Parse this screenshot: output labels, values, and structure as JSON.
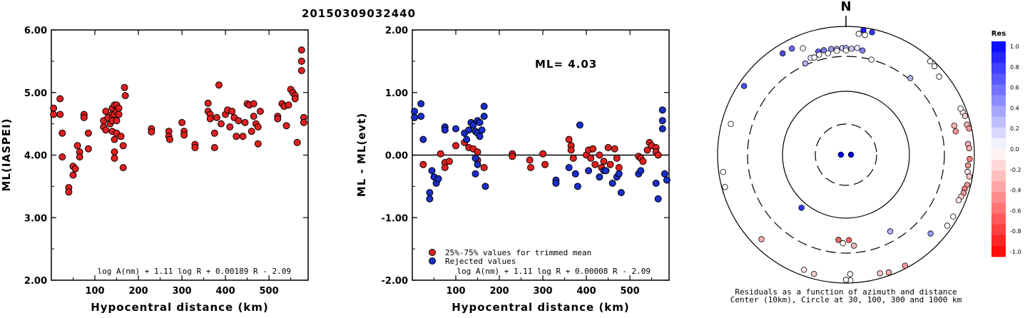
{
  "title": "20150309032440",
  "chart_data": [
    {
      "type": "scatter",
      "name": "ml-vs-distance",
      "xlabel": "Hypocentral distance (km)",
      "ylabel": "ML(IASPEI)",
      "xlim": [
        0,
        590
      ],
      "ylim": [
        2.0,
        6.0
      ],
      "xticks": [
        "100",
        "200",
        "300",
        "400",
        "500"
      ],
      "yticks": [
        "2.00",
        "3.00",
        "4.00",
        "5.00",
        "6.00"
      ],
      "formula": "log A(nm) + 1.11 log R + 0.00189 R - 2.09",
      "marker_color": "#e02020",
      "points": [
        [
          5,
          4.75
        ],
        [
          5,
          4.65
        ],
        [
          20,
          4.9
        ],
        [
          20,
          4.65
        ],
        [
          25,
          4.35
        ],
        [
          25,
          3.97
        ],
        [
          40,
          3.48
        ],
        [
          40,
          3.41
        ],
        [
          50,
          3.82
        ],
        [
          50,
          3.68
        ],
        [
          55,
          3.78
        ],
        [
          60,
          4.15
        ],
        [
          65,
          4.05
        ],
        [
          65,
          3.97
        ],
        [
          75,
          4.65
        ],
        [
          75,
          4.6
        ],
        [
          85,
          4.35
        ],
        [
          85,
          4.1
        ],
        [
          120,
          4.55
        ],
        [
          120,
          4.45
        ],
        [
          125,
          4.7
        ],
        [
          125,
          4.4
        ],
        [
          130,
          4.6
        ],
        [
          135,
          4.5
        ],
        [
          140,
          4.75
        ],
        [
          140,
          4.65
        ],
        [
          140,
          4.55
        ],
        [
          140,
          4.38
        ],
        [
          145,
          4.8
        ],
        [
          145,
          4.65
        ],
        [
          145,
          4.25
        ],
        [
          145,
          4.05
        ],
        [
          145,
          3.95
        ],
        [
          150,
          4.8
        ],
        [
          150,
          4.7
        ],
        [
          150,
          4.55
        ],
        [
          150,
          4.35
        ],
        [
          155,
          4.75
        ],
        [
          155,
          4.65
        ],
        [
          160,
          4.3
        ],
        [
          165,
          4.15
        ],
        [
          165,
          3.8
        ],
        [
          168,
          5.08
        ],
        [
          170,
          4.95
        ],
        [
          230,
          4.42
        ],
        [
          230,
          4.37
        ],
        [
          270,
          4.38
        ],
        [
          270,
          4.3
        ],
        [
          272,
          4.25
        ],
        [
          300,
          4.52
        ],
        [
          305,
          4.38
        ],
        [
          305,
          4.32
        ],
        [
          330,
          4.17
        ],
        [
          330,
          4.12
        ],
        [
          360,
          4.83
        ],
        [
          360,
          4.7
        ],
        [
          365,
          4.65
        ],
        [
          365,
          4.58
        ],
        [
          375,
          4.35
        ],
        [
          375,
          4.12
        ],
        [
          380,
          4.6
        ],
        [
          385,
          5.12
        ],
        [
          390,
          4.5
        ],
        [
          400,
          4.65
        ],
        [
          405,
          4.72
        ],
        [
          410,
          4.45
        ],
        [
          415,
          4.7
        ],
        [
          420,
          4.6
        ],
        [
          425,
          4.3
        ],
        [
          430,
          4.55
        ],
        [
          440,
          4.3
        ],
        [
          445,
          4.52
        ],
        [
          450,
          4.82
        ],
        [
          455,
          4.8
        ],
        [
          460,
          4.38
        ],
        [
          465,
          4.62
        ],
        [
          465,
          4.82
        ],
        [
          470,
          4.5
        ],
        [
          475,
          4.45
        ],
        [
          475,
          4.18
        ],
        [
          480,
          4.7
        ],
        [
          520,
          4.62
        ],
        [
          520,
          4.58
        ],
        [
          530,
          4.82
        ],
        [
          535,
          4.78
        ],
        [
          540,
          4.47
        ],
        [
          545,
          4.8
        ],
        [
          550,
          5.05
        ],
        [
          555,
          5.0
        ],
        [
          560,
          4.95
        ],
        [
          560,
          4.9
        ],
        [
          565,
          4.2
        ],
        [
          575,
          5.68
        ],
        [
          575,
          5.5
        ],
        [
          575,
          5.35
        ],
        [
          580,
          4.6
        ],
        [
          580,
          4.52
        ]
      ]
    },
    {
      "type": "scatter",
      "name": "residual-vs-distance",
      "xlabel": "Hypocentral distance (km)",
      "ylabel": "ML - ML(evt)",
      "xlim": [
        0,
        590
      ],
      "ylim": [
        -2.0,
        2.0
      ],
      "xticks": [
        "100",
        "200",
        "300",
        "400",
        "500"
      ],
      "yticks": [
        "-2.00",
        "-1.00",
        "0.00",
        "1.00",
        "2.00"
      ],
      "annotation": "ML= 4.03",
      "formula": "log A(nm) + 1.11 log R + 0.00008 R - 2.09",
      "legend": {
        "trimmed": "25%-75% values for trimmed mean",
        "rejected": "Rejected values"
      },
      "trimmed_color": "#e02020",
      "rejected_color": "#1a2ec8",
      "series": [
        {
          "role": "trimmed",
          "points": [
            [
              25,
              -0.15
            ],
            [
              65,
              0.02
            ],
            [
              75,
              -0.12
            ],
            [
              75,
              -0.2
            ],
            [
              85,
              -0.1
            ],
            [
              100,
              0.15
            ],
            [
              120,
              0.2
            ],
            [
              130,
              0.12
            ],
            [
              140,
              0.1
            ],
            [
              150,
              0.05
            ],
            [
              150,
              -0.08
            ],
            [
              165,
              -0.2
            ],
            [
              230,
              0.02
            ],
            [
              230,
              -0.02
            ],
            [
              270,
              -0.08
            ],
            [
              272,
              -0.2
            ],
            [
              300,
              0.02
            ],
            [
              305,
              -0.15
            ],
            [
              360,
              0.25
            ],
            [
              365,
              0.15
            ],
            [
              365,
              0.08
            ],
            [
              370,
              -0.05
            ],
            [
              400,
              0.0
            ],
            [
              405,
              0.08
            ],
            [
              410,
              -0.05
            ],
            [
              415,
              0.1
            ],
            [
              420,
              -0.15
            ],
            [
              430,
              0.0
            ],
            [
              435,
              -0.2
            ],
            [
              440,
              -0.1
            ],
            [
              450,
              0.12
            ],
            [
              455,
              -0.15
            ],
            [
              465,
              0.1
            ],
            [
              470,
              -0.05
            ],
            [
              475,
              -0.2
            ],
            [
              520,
              -0.02
            ],
            [
              525,
              -0.05
            ],
            [
              530,
              -0.1
            ],
            [
              540,
              0.08
            ],
            [
              545,
              0.2
            ],
            [
              550,
              0.15
            ],
            [
              560,
              0.12
            ],
            [
              560,
              0.05
            ],
            [
              565,
              0.0
            ]
          ]
        },
        {
          "role": "rejected",
          "points": [
            [
              5,
              0.7
            ],
            [
              5,
              0.6
            ],
            [
              20,
              0.82
            ],
            [
              20,
              0.62
            ],
            [
              25,
              0.25
            ],
            [
              40,
              -0.6
            ],
            [
              40,
              -0.7
            ],
            [
              45,
              -0.25
            ],
            [
              50,
              -0.35
            ],
            [
              55,
              -0.45
            ],
            [
              60,
              -0.38
            ],
            [
              75,
              0.45
            ],
            [
              75,
              0.4
            ],
            [
              100,
              0.42
            ],
            [
              120,
              0.35
            ],
            [
              125,
              0.25
            ],
            [
              130,
              0.4
            ],
            [
              135,
              0.52
            ],
            [
              140,
              0.48
            ],
            [
              145,
              0.38
            ],
            [
              145,
              -0.05
            ],
            [
              145,
              -0.3
            ],
            [
              150,
              0.55
            ],
            [
              150,
              0.35
            ],
            [
              150,
              -0.15
            ],
            [
              155,
              0.52
            ],
            [
              155,
              0.3
            ],
            [
              160,
              0.4
            ],
            [
              165,
              0.78
            ],
            [
              165,
              0.62
            ],
            [
              168,
              -0.5
            ],
            [
              330,
              -0.4
            ],
            [
              330,
              -0.45
            ],
            [
              360,
              -0.2
            ],
            [
              375,
              -0.3
            ],
            [
              380,
              -0.5
            ],
            [
              385,
              0.48
            ],
            [
              405,
              -0.25
            ],
            [
              430,
              -0.35
            ],
            [
              440,
              -0.25
            ],
            [
              445,
              -0.25
            ],
            [
              460,
              -0.45
            ],
            [
              470,
              -0.35
            ],
            [
              475,
              -0.3
            ],
            [
              480,
              -0.6
            ],
            [
              520,
              -0.3
            ],
            [
              525,
              -0.25
            ],
            [
              560,
              -0.45
            ],
            [
              565,
              -0.7
            ],
            [
              575,
              0.72
            ],
            [
              575,
              0.55
            ],
            [
              575,
              0.42
            ],
            [
              580,
              -0.3
            ],
            [
              585,
              -0.4
            ]
          ]
        }
      ]
    },
    {
      "type": "polar",
      "name": "residuals-azimuth-distance",
      "north_label": "N",
      "caption_line1": "Residuals as a function of azimuth and distance",
      "caption_line2": "Center (10km), Circle at 30, 100, 300 and 1000 km",
      "rings_km": [
        30,
        100,
        300,
        1000
      ],
      "points": [
        {
          "az": 8,
          "km": 900,
          "res": 0.9
        },
        {
          "az": 12,
          "km": 880,
          "res": 0.8
        },
        {
          "az": 6,
          "km": 760,
          "res": 0.0
        },
        {
          "az": 9,
          "km": 750,
          "res": 0.0
        },
        {
          "az": 328,
          "km": 700,
          "res": 0.7
        },
        {
          "az": 333,
          "km": 690,
          "res": 0.6
        },
        {
          "az": 338,
          "km": 580,
          "res": 0.0
        },
        {
          "az": 345,
          "km": 420,
          "res": 0.6
        },
        {
          "az": 348,
          "km": 420,
          "res": 0.5
        },
        {
          "az": 352,
          "km": 420,
          "res": 0.4
        },
        {
          "az": 355,
          "km": 410,
          "res": 0.3
        },
        {
          "az": 358,
          "km": 420,
          "res": 0.2
        },
        {
          "az": 0,
          "km": 420,
          "res": 0.3
        },
        {
          "az": 3,
          "km": 410,
          "res": 0.2
        },
        {
          "az": 6,
          "km": 430,
          "res": 0.1
        },
        {
          "az": 9,
          "km": 400,
          "res": 0.5
        },
        {
          "az": 345,
          "km": 370,
          "res": 0.0
        },
        {
          "az": 350,
          "km": 360,
          "res": 0.0
        },
        {
          "az": 355,
          "km": 380,
          "res": 0.0
        },
        {
          "az": 0,
          "km": 380,
          "res": 0.0
        },
        {
          "az": 340,
          "km": 360,
          "res": 0.1
        },
        {
          "az": 342,
          "km": 350,
          "res": 0.0
        },
        {
          "az": 336,
          "km": 320,
          "res": 0.3
        },
        {
          "az": 304,
          "km": 800,
          "res": 0.7
        },
        {
          "az": 15,
          "km": 300,
          "res": 0.0
        },
        {
          "az": 40,
          "km": 320,
          "res": 0.3
        },
        {
          "az": 42,
          "km": 900,
          "res": 0.0
        },
        {
          "az": 45,
          "km": 880,
          "res": 0.0
        },
        {
          "az": 50,
          "km": 760,
          "res": 0.0
        },
        {
          "az": 85,
          "km": 790,
          "res": -0.3
        },
        {
          "az": 87,
          "km": 820,
          "res": -0.3
        },
        {
          "az": 92,
          "km": 830,
          "res": -0.5
        },
        {
          "az": 95,
          "km": 790,
          "res": -0.4
        },
        {
          "az": 70,
          "km": 850,
          "res": -0.1
        },
        {
          "az": 72,
          "km": 880,
          "res": -0.2
        },
        {
          "az": 76,
          "km": 860,
          "res": -0.3
        },
        {
          "az": 78,
          "km": 900,
          "res": -0.4
        },
        {
          "az": 68,
          "km": 820,
          "res": 0.0
        },
        {
          "az": 75,
          "km": 520,
          "res": -0.3
        },
        {
          "az": 78,
          "km": 520,
          "res": -0.4
        },
        {
          "az": 98,
          "km": 800,
          "res": -0.1
        },
        {
          "az": 100,
          "km": 880,
          "res": -0.2
        },
        {
          "az": 104,
          "km": 870,
          "res": -0.4
        },
        {
          "az": 106,
          "km": 820,
          "res": -0.5
        },
        {
          "az": 108,
          "km": 830,
          "res": -0.4
        },
        {
          "az": 110,
          "km": 790,
          "res": -0.2
        },
        {
          "az": 112,
          "km": 760,
          "res": -0.1
        },
        {
          "az": 120,
          "km": 830,
          "res": 0.0
        },
        {
          "az": 125,
          "km": 830,
          "res": 0.0
        },
        {
          "az": 133,
          "km": 600,
          "res": 0.4
        },
        {
          "az": 152,
          "km": 900,
          "res": -0.4
        },
        {
          "az": 160,
          "km": 880,
          "res": -0.3
        },
        {
          "az": 164,
          "km": 820,
          "res": -0.2
        },
        {
          "az": 178,
          "km": 900,
          "res": 0.0
        },
        {
          "az": 180,
          "km": 880,
          "res": 0.0
        },
        {
          "az": 178,
          "km": 700,
          "res": 0.0
        },
        {
          "az": 185,
          "km": 200,
          "res": -0.6
        },
        {
          "az": 178,
          "km": 200,
          "res": -0.6
        },
        {
          "az": 182,
          "km": 220,
          "res": 0.0
        },
        {
          "az": 175,
          "km": 240,
          "res": -0.3
        },
        {
          "az": 150,
          "km": 220,
          "res": 0.3
        },
        {
          "az": 220,
          "km": 120,
          "res": 0.8
        },
        {
          "az": 195,
          "km": 820,
          "res": -0.2
        },
        {
          "az": 200,
          "km": 790,
          "res": -0.1
        },
        {
          "az": 225,
          "km": 700,
          "res": -0.3
        },
        {
          "az": 255,
          "km": 880,
          "res": 0.0
        },
        {
          "az": 262,
          "km": 840,
          "res": 0.0
        },
        {
          "az": 285,
          "km": 690,
          "res": 0.0
        },
        {
          "az": 90,
          "km": 12,
          "res": 1.0
        },
        {
          "az": 270,
          "km": 12,
          "res": 1.0
        }
      ]
    }
  ],
  "colorbar": {
    "title": "Res",
    "labels": [
      "1.0",
      "0.8",
      "0.6",
      "0.4",
      "0.2",
      "0.0",
      "-0.2",
      "-0.4",
      "-0.6",
      "-0.8",
      "-1.0"
    ]
  }
}
